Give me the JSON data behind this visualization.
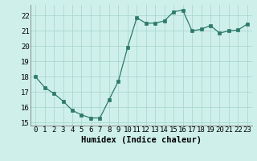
{
  "x": [
    0,
    1,
    2,
    3,
    4,
    5,
    6,
    7,
    8,
    9,
    10,
    11,
    12,
    13,
    14,
    15,
    16,
    17,
    18,
    19,
    20,
    21,
    22,
    23
  ],
  "y": [
    18.0,
    17.3,
    16.9,
    16.4,
    15.8,
    15.5,
    15.3,
    15.3,
    16.5,
    17.7,
    19.9,
    21.85,
    21.5,
    21.5,
    21.65,
    22.25,
    22.35,
    21.0,
    21.1,
    21.35,
    20.85,
    21.0,
    21.05,
    21.45
  ],
  "line_color": "#2d7a6a",
  "marker": "s",
  "markersize": 2.2,
  "linewidth": 0.9,
  "bg_color": "#cff0ea",
  "grid_color": "#aad8d0",
  "xlabel": "Humidex (Indice chaleur)",
  "ylim": [
    14.8,
    22.7
  ],
  "xlim": [
    -0.5,
    23.5
  ],
  "yticks": [
    15,
    16,
    17,
    18,
    19,
    20,
    21,
    22
  ],
  "xticks": [
    0,
    1,
    2,
    3,
    4,
    5,
    6,
    7,
    8,
    9,
    10,
    11,
    12,
    13,
    14,
    15,
    16,
    17,
    18,
    19,
    20,
    21,
    22,
    23
  ],
  "xtick_labels": [
    "0",
    "1",
    "2",
    "3",
    "4",
    "5",
    "6",
    "7",
    "8",
    "9",
    "10",
    "11",
    "12",
    "13",
    "14",
    "15",
    "16",
    "17",
    "18",
    "19",
    "20",
    "21",
    "22",
    "23"
  ],
  "tick_fontsize": 6.5,
  "label_fontsize": 7.5
}
